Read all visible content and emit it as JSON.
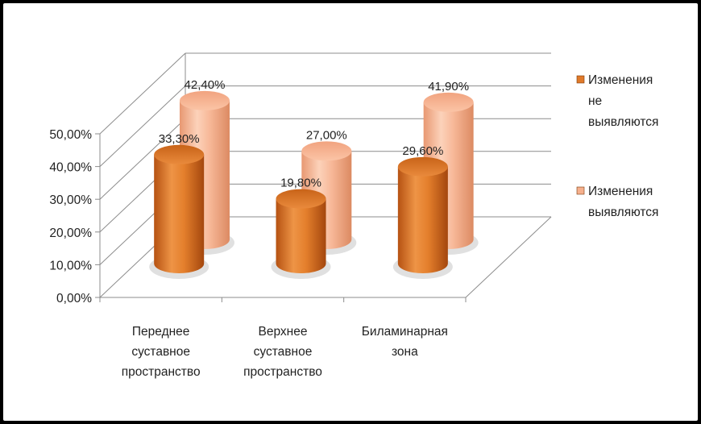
{
  "chart_data": {
    "type": "bar",
    "style": "3d-cylinder",
    "categories": [
      [
        "Переднее",
        "суставное",
        "пространство"
      ],
      [
        "Верхнее",
        "суставное",
        "пространство"
      ],
      [
        "Биламинарная",
        "зона"
      ]
    ],
    "series": [
      {
        "name": [
          "Изменения",
          "не",
          "выявляются"
        ],
        "values": [
          33.3,
          19.8,
          29.6
        ],
        "labels": [
          "33,30%",
          "19,80%",
          "29,60%"
        ],
        "color": "#e07a2a"
      },
      {
        "name": [
          "Изменения",
          "выявляются"
        ],
        "values": [
          42.4,
          27.0,
          41.9
        ],
        "labels": [
          "42,40%",
          "27,00%",
          "41,90%"
        ],
        "color": "#f6b08d"
      }
    ],
    "yticks": [
      "0,00%",
      "10,00%",
      "20,00%",
      "30,00%",
      "40,00%",
      "50,00%"
    ],
    "ylim": [
      0,
      50
    ],
    "grid": true,
    "legend_position": "right"
  }
}
